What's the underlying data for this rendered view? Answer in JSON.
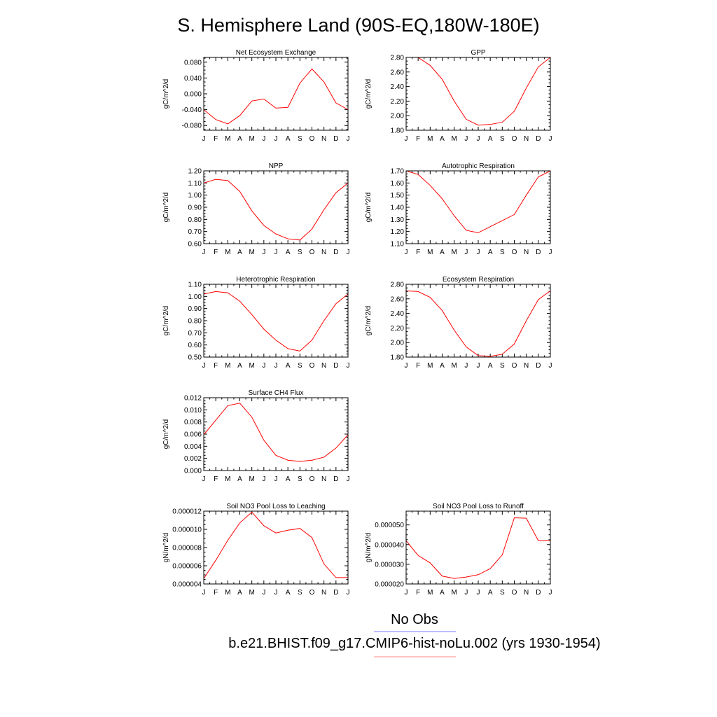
{
  "figure": {
    "title": "S. Hemisphere Land (90S-EQ,180W-180E)"
  },
  "legend": {
    "entries": [
      {
        "label": "No Obs",
        "color": "#7b7bff"
      },
      {
        "label": "b.e21.BHIST.f09_g17.CMIP6-hist-noLu.002 (yrs 1930-1954)",
        "color": "#ff8a8a"
      }
    ]
  },
  "colors": {
    "series": "#ff0000",
    "axis": "#000000"
  },
  "chart_data": [
    {
      "type": "line",
      "title": "Net Ecosystem Exchange",
      "ylabel": "gC/m^2/d",
      "categories": [
        "J",
        "F",
        "M",
        "A",
        "M",
        "J",
        "J",
        "A",
        "S",
        "O",
        "N",
        "D",
        "J"
      ],
      "yticks": [
        "0.080",
        "0.040",
        "0.000",
        "-0.040",
        "-0.080"
      ],
      "ytick_values": [
        0.08,
        0.04,
        0.0,
        -0.04,
        -0.08
      ],
      "ylim": [
        -0.092,
        0.092
      ],
      "series": [
        {
          "values": [
            -0.04,
            -0.065,
            -0.076,
            -0.055,
            -0.018,
            -0.013,
            -0.036,
            -0.034,
            0.027,
            0.063,
            0.03,
            -0.023,
            -0.04
          ]
        }
      ]
    },
    {
      "type": "line",
      "title": "GPP",
      "ylabel": "gC/m^2/d",
      "categories": [
        "J",
        "F",
        "M",
        "A",
        "M",
        "J",
        "J",
        "A",
        "S",
        "O",
        "N",
        "D",
        "J"
      ],
      "yticks": [
        "2.80",
        "2.60",
        "2.40",
        "2.20",
        "2.00",
        "1.80"
      ],
      "ytick_values": [
        2.8,
        2.6,
        2.4,
        2.2,
        2.0,
        1.8
      ],
      "ylim": [
        1.8,
        2.8
      ],
      "series": [
        {
          "values": [
            2.8,
            2.8,
            2.69,
            2.5,
            2.2,
            1.95,
            1.87,
            1.88,
            1.91,
            2.06,
            2.38,
            2.67,
            2.8
          ]
        }
      ]
    },
    {
      "type": "line",
      "title": "NPP",
      "ylabel": "gC/m^2/d",
      "categories": [
        "J",
        "F",
        "M",
        "A",
        "M",
        "J",
        "J",
        "A",
        "S",
        "O",
        "N",
        "D",
        "J"
      ],
      "yticks": [
        "1.20",
        "1.10",
        "1.00",
        "0.90",
        "0.80",
        "0.70",
        "0.60"
      ],
      "ytick_values": [
        1.2,
        1.1,
        1.0,
        0.9,
        0.8,
        0.7,
        0.6
      ],
      "ylim": [
        0.6,
        1.2
      ],
      "series": [
        {
          "values": [
            1.1,
            1.13,
            1.12,
            1.03,
            0.87,
            0.75,
            0.68,
            0.64,
            0.63,
            0.72,
            0.88,
            1.02,
            1.1
          ]
        }
      ]
    },
    {
      "type": "line",
      "title": "Autotrophic Respiration",
      "ylabel": "gC/m^2/d",
      "categories": [
        "J",
        "F",
        "M",
        "A",
        "M",
        "J",
        "J",
        "A",
        "S",
        "O",
        "N",
        "D",
        "J"
      ],
      "yticks": [
        "1.70",
        "1.60",
        "1.50",
        "1.40",
        "1.30",
        "1.20",
        "1.10"
      ],
      "ytick_values": [
        1.7,
        1.6,
        1.5,
        1.4,
        1.3,
        1.2,
        1.1
      ],
      "ylim": [
        1.1,
        1.7
      ],
      "series": [
        {
          "values": [
            1.7,
            1.67,
            1.58,
            1.47,
            1.33,
            1.21,
            1.19,
            1.24,
            1.29,
            1.34,
            1.5,
            1.65,
            1.7
          ]
        }
      ]
    },
    {
      "type": "line",
      "title": "Heterotrophic Respiration",
      "ylabel": "gC/m^2/d",
      "categories": [
        "J",
        "F",
        "M",
        "A",
        "M",
        "J",
        "J",
        "A",
        "S",
        "O",
        "N",
        "D",
        "J"
      ],
      "yticks": [
        "1.10",
        "1.00",
        "0.90",
        "0.80",
        "0.70",
        "0.60",
        "0.50"
      ],
      "ytick_values": [
        1.1,
        1.0,
        0.9,
        0.8,
        0.7,
        0.6,
        0.5
      ],
      "ylim": [
        0.5,
        1.1
      ],
      "series": [
        {
          "values": [
            1.02,
            1.04,
            1.03,
            0.96,
            0.85,
            0.73,
            0.64,
            0.57,
            0.55,
            0.64,
            0.8,
            0.94,
            1.02
          ]
        }
      ]
    },
    {
      "type": "line",
      "title": "Ecosystem Respiration",
      "ylabel": "gC/m^2/d",
      "categories": [
        "J",
        "F",
        "M",
        "A",
        "M",
        "J",
        "J",
        "A",
        "S",
        "O",
        "N",
        "D",
        "J"
      ],
      "yticks": [
        "2.80",
        "2.60",
        "2.40",
        "2.20",
        "2.00",
        "1.80"
      ],
      "ytick_values": [
        2.8,
        2.6,
        2.4,
        2.2,
        2.0,
        1.8
      ],
      "ylim": [
        1.8,
        2.8
      ],
      "series": [
        {
          "values": [
            2.71,
            2.7,
            2.62,
            2.44,
            2.17,
            1.94,
            1.82,
            1.81,
            1.84,
            1.98,
            2.3,
            2.59,
            2.71
          ]
        }
      ]
    },
    {
      "type": "line",
      "title": "Surface CH4 Flux",
      "ylabel": "gC/m^2/d",
      "categories": [
        "J",
        "F",
        "M",
        "A",
        "M",
        "J",
        "J",
        "A",
        "S",
        "O",
        "N",
        "D",
        "J"
      ],
      "yticks": [
        "0.012",
        "0.010",
        "0.008",
        "0.006",
        "0.004",
        "0.002",
        "0.000"
      ],
      "ytick_values": [
        0.012,
        0.01,
        0.008,
        0.006,
        0.004,
        0.002,
        0.0
      ],
      "ylim": [
        0.0,
        0.012
      ],
      "series": [
        {
          "values": [
            0.0059,
            0.0083,
            0.0107,
            0.0111,
            0.0088,
            0.005,
            0.0025,
            0.0017,
            0.0015,
            0.0017,
            0.0022,
            0.0037,
            0.0059
          ]
        }
      ]
    },
    {
      "type": "line",
      "title": "Soil NO3 Pool Loss to Leaching",
      "ylabel": "gN/m^2/d",
      "categories": [
        "J",
        "F",
        "M",
        "A",
        "M",
        "J",
        "J",
        "A",
        "S",
        "O",
        "N",
        "D",
        "J"
      ],
      "yticks": [
        "0.000012",
        "0.000010",
        "0.000008",
        "0.000006",
        "0.000004"
      ],
      "ytick_values": [
        1.2e-05,
        1e-05,
        8e-06,
        6e-06,
        4e-06
      ],
      "ylim": [
        4e-06,
        1.2e-05
      ],
      "series": [
        {
          "values": [
            4.6e-06,
            6.6e-06,
            8.8e-06,
            1.07e-05,
            1.19e-05,
            1.04e-05,
            9.6e-06,
            9.9e-06,
            1.01e-05,
            9.1e-06,
            6.2e-06,
            4.7e-06,
            4.7e-06
          ]
        }
      ]
    },
    {
      "type": "line",
      "title": "Soil NO3 Pool Loss to Runoff",
      "ylabel": "gN/m^2/d",
      "categories": [
        "J",
        "F",
        "M",
        "A",
        "M",
        "J",
        "J",
        "A",
        "S",
        "O",
        "N",
        "D",
        "J"
      ],
      "yticks": [
        "0.000050",
        "0.000040",
        "0.000030",
        "0.000020"
      ],
      "ytick_values": [
        5e-05,
        4e-05,
        3e-05,
        2e-05
      ],
      "ylim": [
        2e-05,
        5.7e-05
      ],
      "series": [
        {
          "values": [
            4.2e-05,
            3.45e-05,
            3.07e-05,
            2.4e-05,
            2.28e-05,
            2.35e-05,
            2.47e-05,
            2.78e-05,
            3.48e-05,
            5.36e-05,
            5.34e-05,
            4.2e-05,
            4.21e-05
          ]
        }
      ]
    }
  ]
}
